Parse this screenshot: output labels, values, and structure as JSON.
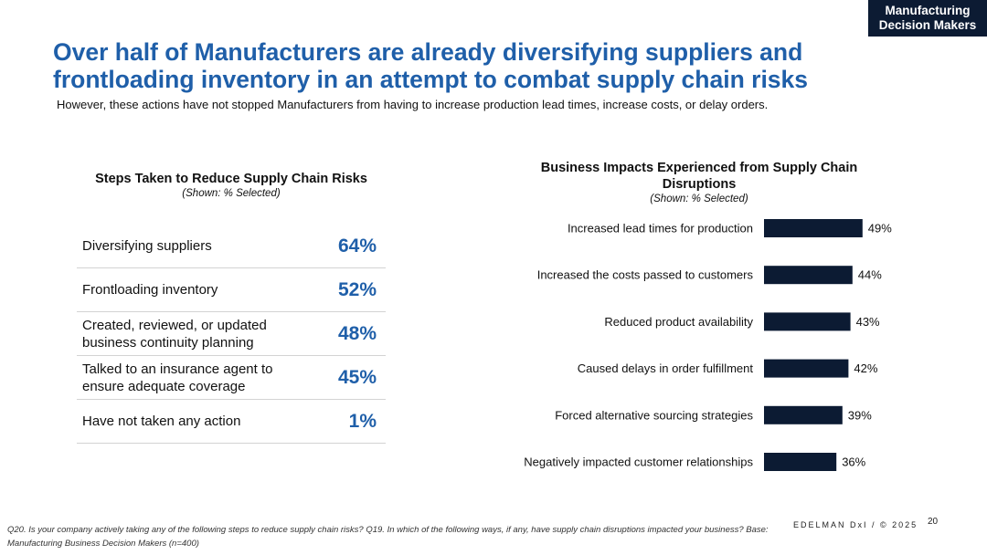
{
  "badge": {
    "line1": "Manufacturing",
    "line2": "Decision Makers"
  },
  "headline": {
    "line1": "Over half of Manufacturers are already diversifying suppliers and",
    "line2": "frontloading inventory in an attempt to combat supply chain risks"
  },
  "subheadline": "However, these actions have not stopped Manufacturers from having to increase production lead times, increase costs, or delay orders.",
  "left_panel": {
    "title": "Steps Taken to Reduce Supply Chain Risks",
    "note": "(Shown: % Selected)",
    "rows": [
      {
        "label": "Diversifying suppliers",
        "value": "64%"
      },
      {
        "label": "Frontloading inventory",
        "value": "52%"
      },
      {
        "label": "Created, reviewed, or updated business continuity planning",
        "value": "48%"
      },
      {
        "label": "Talked to an insurance agent to ensure adequate coverage",
        "value": "45%"
      },
      {
        "label": "Have not taken any action",
        "value": "1%"
      }
    ]
  },
  "chart_data": {
    "type": "bar",
    "orientation": "horizontal",
    "title": "Business Impacts Experienced from Supply Chain Disruptions",
    "subtitle": "(Shown: % Selected)",
    "categories": [
      "Increased lead times for production",
      "Increased the costs passed to customers",
      "Reduced product availability",
      "Caused delays in order fulfillment",
      "Forced alternative sourcing strategies",
      "Negatively impacted customer relationships"
    ],
    "values": [
      49,
      44,
      43,
      42,
      39,
      36
    ],
    "value_labels": [
      "49%",
      "44%",
      "43%",
      "42%",
      "39%",
      "36%"
    ],
    "unit": "%",
    "xlim": [
      0,
      100
    ],
    "bar_color": "#0c1b33"
  },
  "footnote": "Q20. Is your company actively taking any of the following steps to reduce supply chain risks? Q19. In which of the following ways, if any, have supply chain disruptions impacted your business? Base: Manufacturing Business Decision Makers  (n=400)",
  "footer": {
    "brand": "EDELMAN DxI / © 2025",
    "page": "20"
  }
}
